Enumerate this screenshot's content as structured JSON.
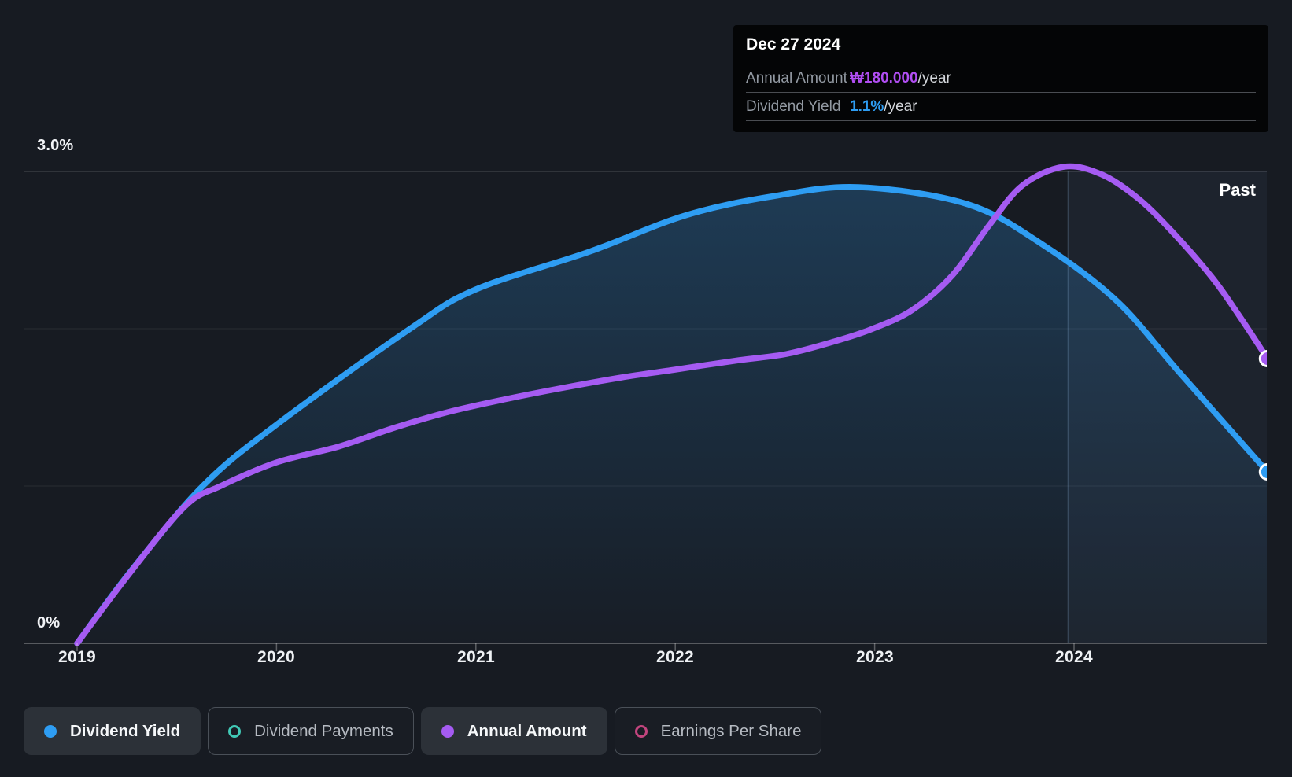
{
  "past_label": "Past",
  "axes": {
    "y_top_label": "3.0%",
    "y_bottom_label": "0%",
    "x_labels": [
      "2019",
      "2020",
      "2021",
      "2022",
      "2023",
      "2024"
    ]
  },
  "tooltip": {
    "date": "Dec 27 2024",
    "rows": [
      {
        "label": "Annual Amount",
        "value": "₩180.000",
        "suffix": "/year",
        "value_color": "#b14ef3"
      },
      {
        "label": "Dividend Yield",
        "value": "1.1%",
        "suffix": "/year",
        "value_color": "#2e9df3"
      }
    ]
  },
  "legend": [
    {
      "label": "Dividend Yield",
      "marker": "filled",
      "color": "#2e9df3",
      "active": true
    },
    {
      "label": "Dividend Payments",
      "marker": "ring",
      "color": "#41c9b6",
      "active": false
    },
    {
      "label": "Annual Amount",
      "marker": "filled",
      "color": "#a55bf2",
      "active": true
    },
    {
      "label": "Earnings Per Share",
      "marker": "ring",
      "color": "#c2457e",
      "active": false
    }
  ],
  "chart_data": {
    "type": "area",
    "title": "Dividend history (past)",
    "x_axis": {
      "start": 2019.0,
      "end": 2024.97,
      "tick_labels": [
        "2019",
        "2020",
        "2021",
        "2022",
        "2023",
        "2024"
      ]
    },
    "y_axis": {
      "min": 0,
      "max": 3,
      "unit": "%",
      "visible_labels": [
        "3.0%",
        "0%"
      ],
      "gridlines": [
        0,
        1,
        2,
        3
      ]
    },
    "past_band_start_year": 2023.97,
    "legend_position": "bottom",
    "series": [
      {
        "name": "Dividend Yield",
        "color": "#2e9df3",
        "style": "line+area",
        "unit": "%",
        "latest": "1.1%/year",
        "points": [
          [
            2019.0,
            0.0
          ],
          [
            2019.27,
            0.46
          ],
          [
            2019.63,
            1.0
          ],
          [
            2020.0,
            1.39
          ],
          [
            2020.67,
            2.0
          ],
          [
            2021.0,
            2.25
          ],
          [
            2021.57,
            2.49
          ],
          [
            2022.05,
            2.72
          ],
          [
            2022.48,
            2.84
          ],
          [
            2022.92,
            2.9
          ],
          [
            2023.47,
            2.79
          ],
          [
            2023.86,
            2.52
          ],
          [
            2024.22,
            2.17
          ],
          [
            2024.53,
            1.72
          ],
          [
            2024.97,
            1.09
          ]
        ]
      },
      {
        "name": "Annual Amount",
        "color": "#a55bf2",
        "style": "line",
        "unit": "KRW per year (amount axis not shown; values are on-screen positions on the % axis, latest point = ₩180.000/year)",
        "latest": "₩180.000/year",
        "points": [
          [
            2019.0,
            0.0
          ],
          [
            2019.26,
            0.44
          ],
          [
            2019.54,
            0.87
          ],
          [
            2019.72,
            1.0
          ],
          [
            2020.0,
            1.15
          ],
          [
            2020.31,
            1.25
          ],
          [
            2020.59,
            1.37
          ],
          [
            2020.86,
            1.47
          ],
          [
            2021.14,
            1.55
          ],
          [
            2021.42,
            1.62
          ],
          [
            2021.73,
            1.69
          ],
          [
            2022.0,
            1.74
          ],
          [
            2022.32,
            1.8
          ],
          [
            2022.56,
            1.84
          ],
          [
            2022.8,
            1.92
          ],
          [
            2022.99,
            2.0
          ],
          [
            2023.19,
            2.12
          ],
          [
            2023.39,
            2.34
          ],
          [
            2023.57,
            2.65
          ],
          [
            2023.74,
            2.91
          ],
          [
            2023.95,
            3.03
          ],
          [
            2024.14,
            2.98
          ],
          [
            2024.32,
            2.83
          ],
          [
            2024.49,
            2.62
          ],
          [
            2024.69,
            2.33
          ],
          [
            2024.83,
            2.08
          ],
          [
            2024.97,
            1.81
          ]
        ]
      }
    ]
  }
}
